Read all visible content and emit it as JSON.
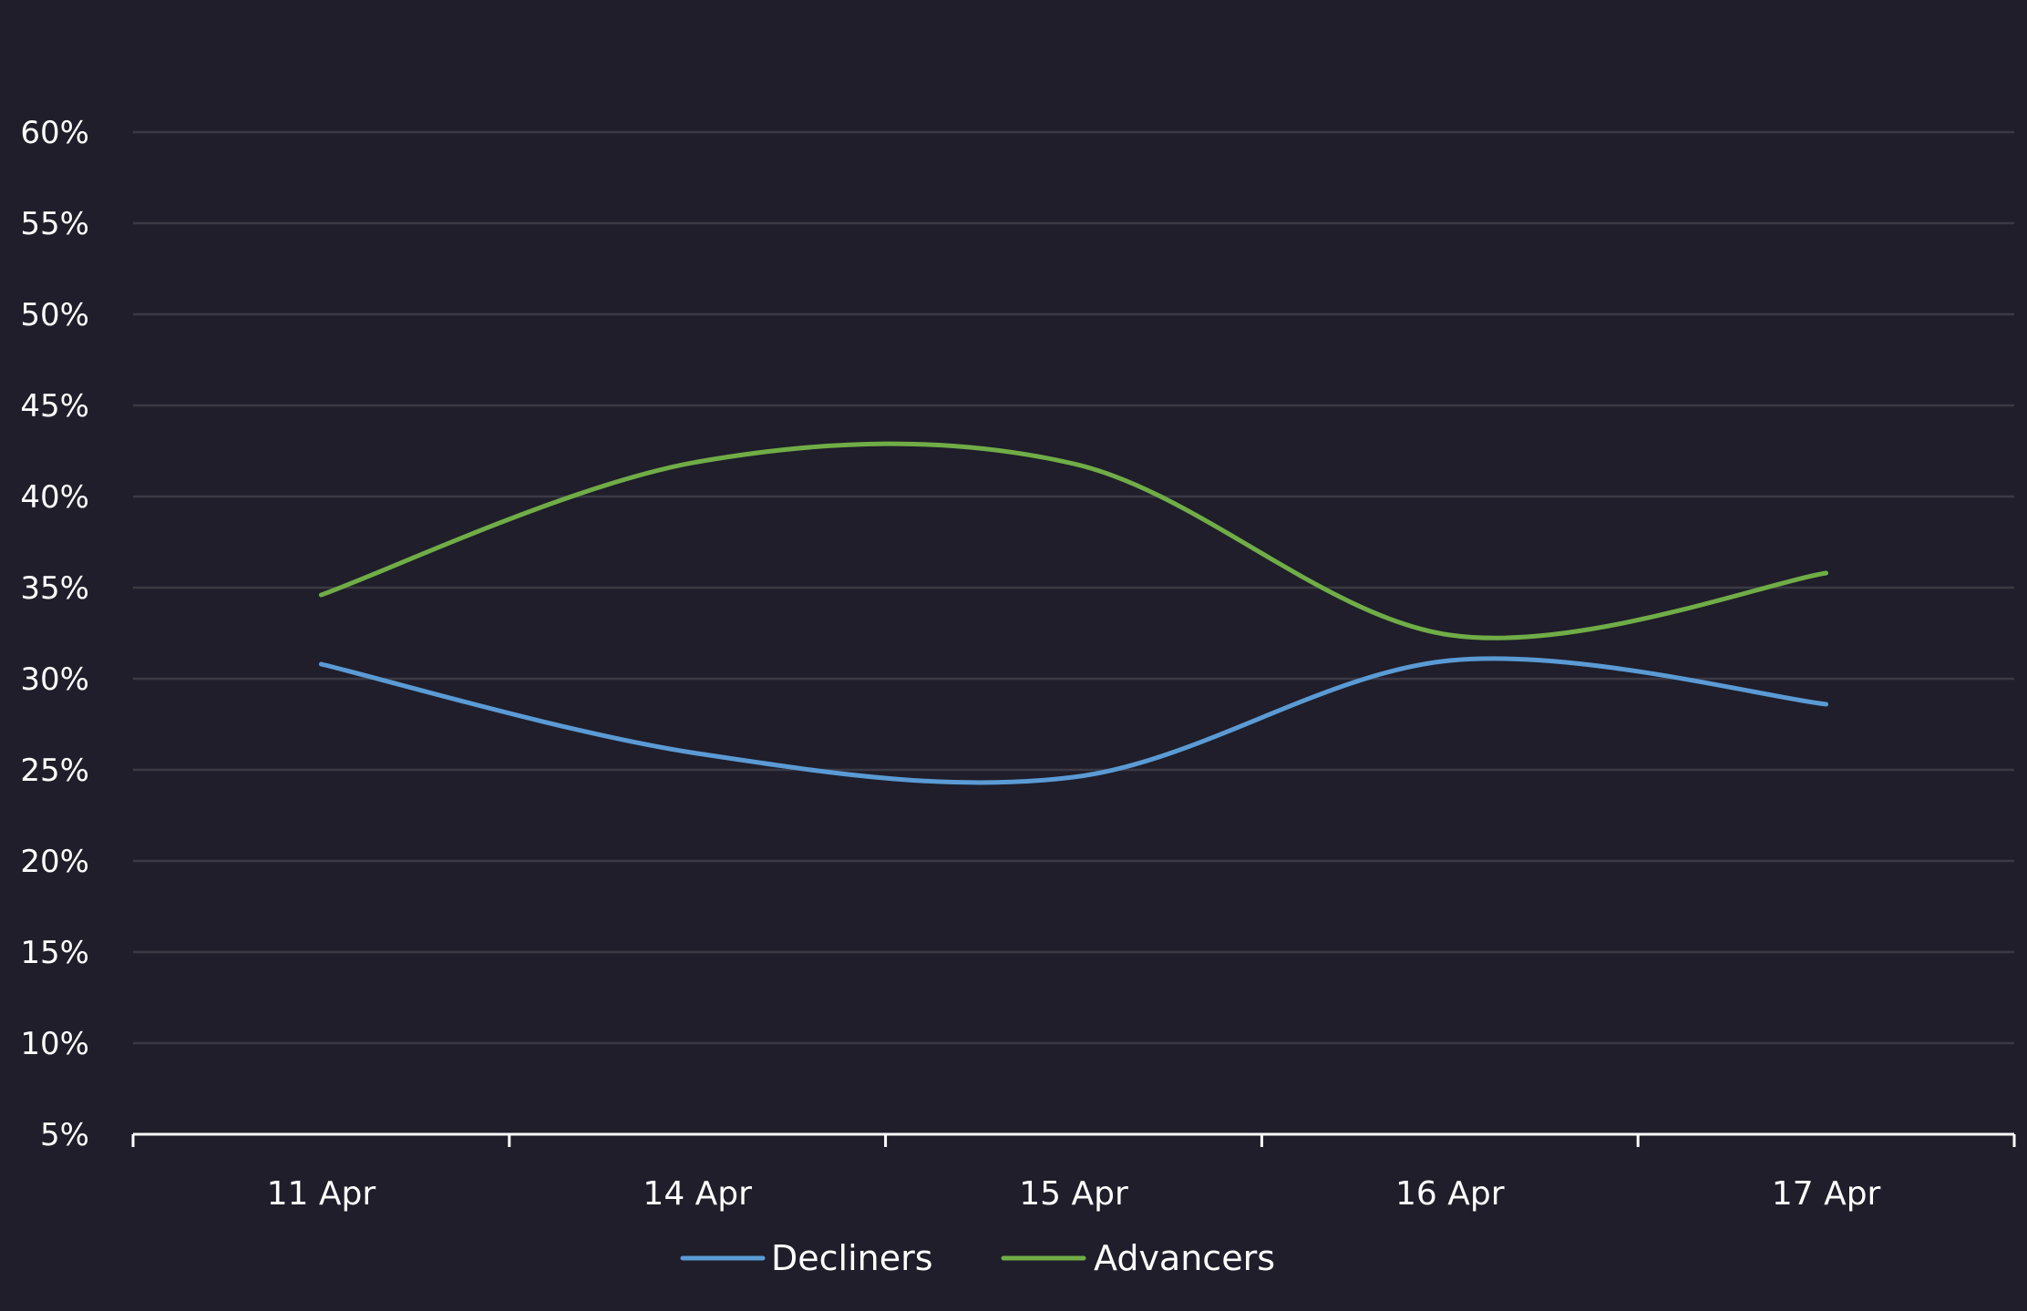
{
  "chart_data": {
    "type": "line",
    "title": "",
    "xlabel": "",
    "ylabel": "",
    "categories": [
      "11 Apr",
      "14 Apr",
      "15 Apr",
      "16 Apr",
      "17 Apr"
    ],
    "yticks": [
      "5%",
      "10%",
      "15%",
      "20%",
      "25%",
      "30%",
      "35%",
      "40%",
      "45%",
      "50%",
      "55%",
      "60%"
    ],
    "ylim": [
      5,
      60
    ],
    "y_unit": "%",
    "grid": true,
    "smooth": true,
    "legend_position": "bottom-center",
    "series": [
      {
        "name": "Decliners",
        "color": "#5b9bd5",
        "values": [
          30.8,
          25.9,
          24.6,
          31.0,
          28.6
        ]
      },
      {
        "name": "Advancers",
        "color": "#70ad47",
        "values": [
          34.6,
          41.9,
          41.8,
          32.4,
          35.8
        ]
      }
    ]
  }
}
